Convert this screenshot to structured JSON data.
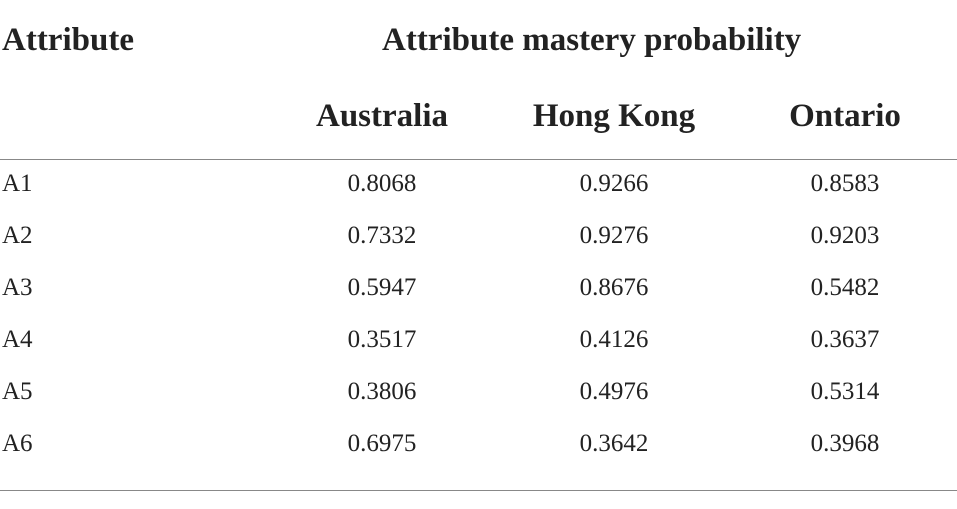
{
  "table": {
    "header": {
      "attribute": "Attribute",
      "group": "Attribute mastery probability",
      "columns": [
        "Australia",
        "Hong Kong",
        "Ontario"
      ]
    },
    "rows": [
      [
        "A1",
        "0.8068",
        "0.9266",
        "0.8583"
      ],
      [
        "A2",
        "0.7332",
        "0.9276",
        "0.9203"
      ],
      [
        "A3",
        "0.5947",
        "0.8676",
        "0.5482"
      ],
      [
        "A4",
        "0.3517",
        "0.4126",
        "0.3637"
      ],
      [
        "A5",
        "0.3806",
        "0.4976",
        "0.5314"
      ],
      [
        "A6",
        "0.6975",
        "0.3642",
        "0.3968"
      ]
    ]
  }
}
